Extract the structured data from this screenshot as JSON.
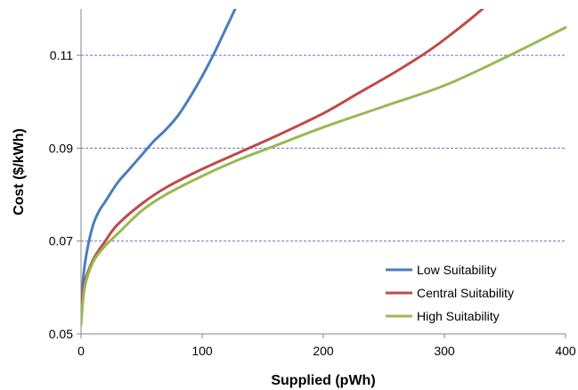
{
  "chart_data": {
    "type": "line",
    "title": "",
    "xlabel": "Supplied (pWh)",
    "ylabel": "Cost ($/kWh)",
    "xlim": [
      0,
      400
    ],
    "ylim": [
      0.05,
      0.12
    ],
    "x_ticks": [
      0,
      100,
      200,
      300,
      400
    ],
    "x_tick_labels": [
      "0",
      "100",
      "200",
      "300",
      "400"
    ],
    "y_ticks": [
      0.05,
      0.07,
      0.09,
      0.11
    ],
    "y_tick_labels": [
      "0.05",
      "0.07",
      "0.09",
      "0.11"
    ],
    "grid": "horizontal dashed at 0.07, 0.09, 0.11",
    "legend_position": "bottom-right",
    "series": [
      {
        "name": "Low Suitability",
        "color": "#4a7ebb",
        "x": [
          0,
          2,
          5,
          10,
          15,
          20,
          30,
          40,
          50,
          60,
          70,
          80,
          90,
          100,
          110,
          120,
          130
        ],
        "y": [
          0.055,
          0.0625,
          0.068,
          0.0735,
          0.0765,
          0.0785,
          0.0825,
          0.0855,
          0.0885,
          0.0915,
          0.094,
          0.097,
          0.101,
          0.1055,
          0.1105,
          0.116,
          0.1215
        ]
      },
      {
        "name": "Central Suitability",
        "color": "#be4b48",
        "x": [
          0,
          3,
          10,
          20,
          30,
          50,
          70,
          100,
          130,
          160,
          200,
          230,
          260,
          290,
          320,
          338
        ],
        "y": [
          0.055,
          0.061,
          0.066,
          0.07,
          0.0735,
          0.078,
          0.0815,
          0.0855,
          0.089,
          0.0925,
          0.0975,
          0.102,
          0.1065,
          0.1115,
          0.1175,
          0.1215
        ]
      },
      {
        "name": "High Suitability",
        "color": "#98b954",
        "x": [
          0,
          3,
          10,
          20,
          30,
          50,
          70,
          100,
          130,
          160,
          200,
          250,
          300,
          350,
          400
        ],
        "y": [
          0.052,
          0.06,
          0.0655,
          0.069,
          0.0715,
          0.0765,
          0.08,
          0.084,
          0.0875,
          0.0905,
          0.0945,
          0.099,
          0.1035,
          0.1095,
          0.116
        ]
      }
    ]
  }
}
